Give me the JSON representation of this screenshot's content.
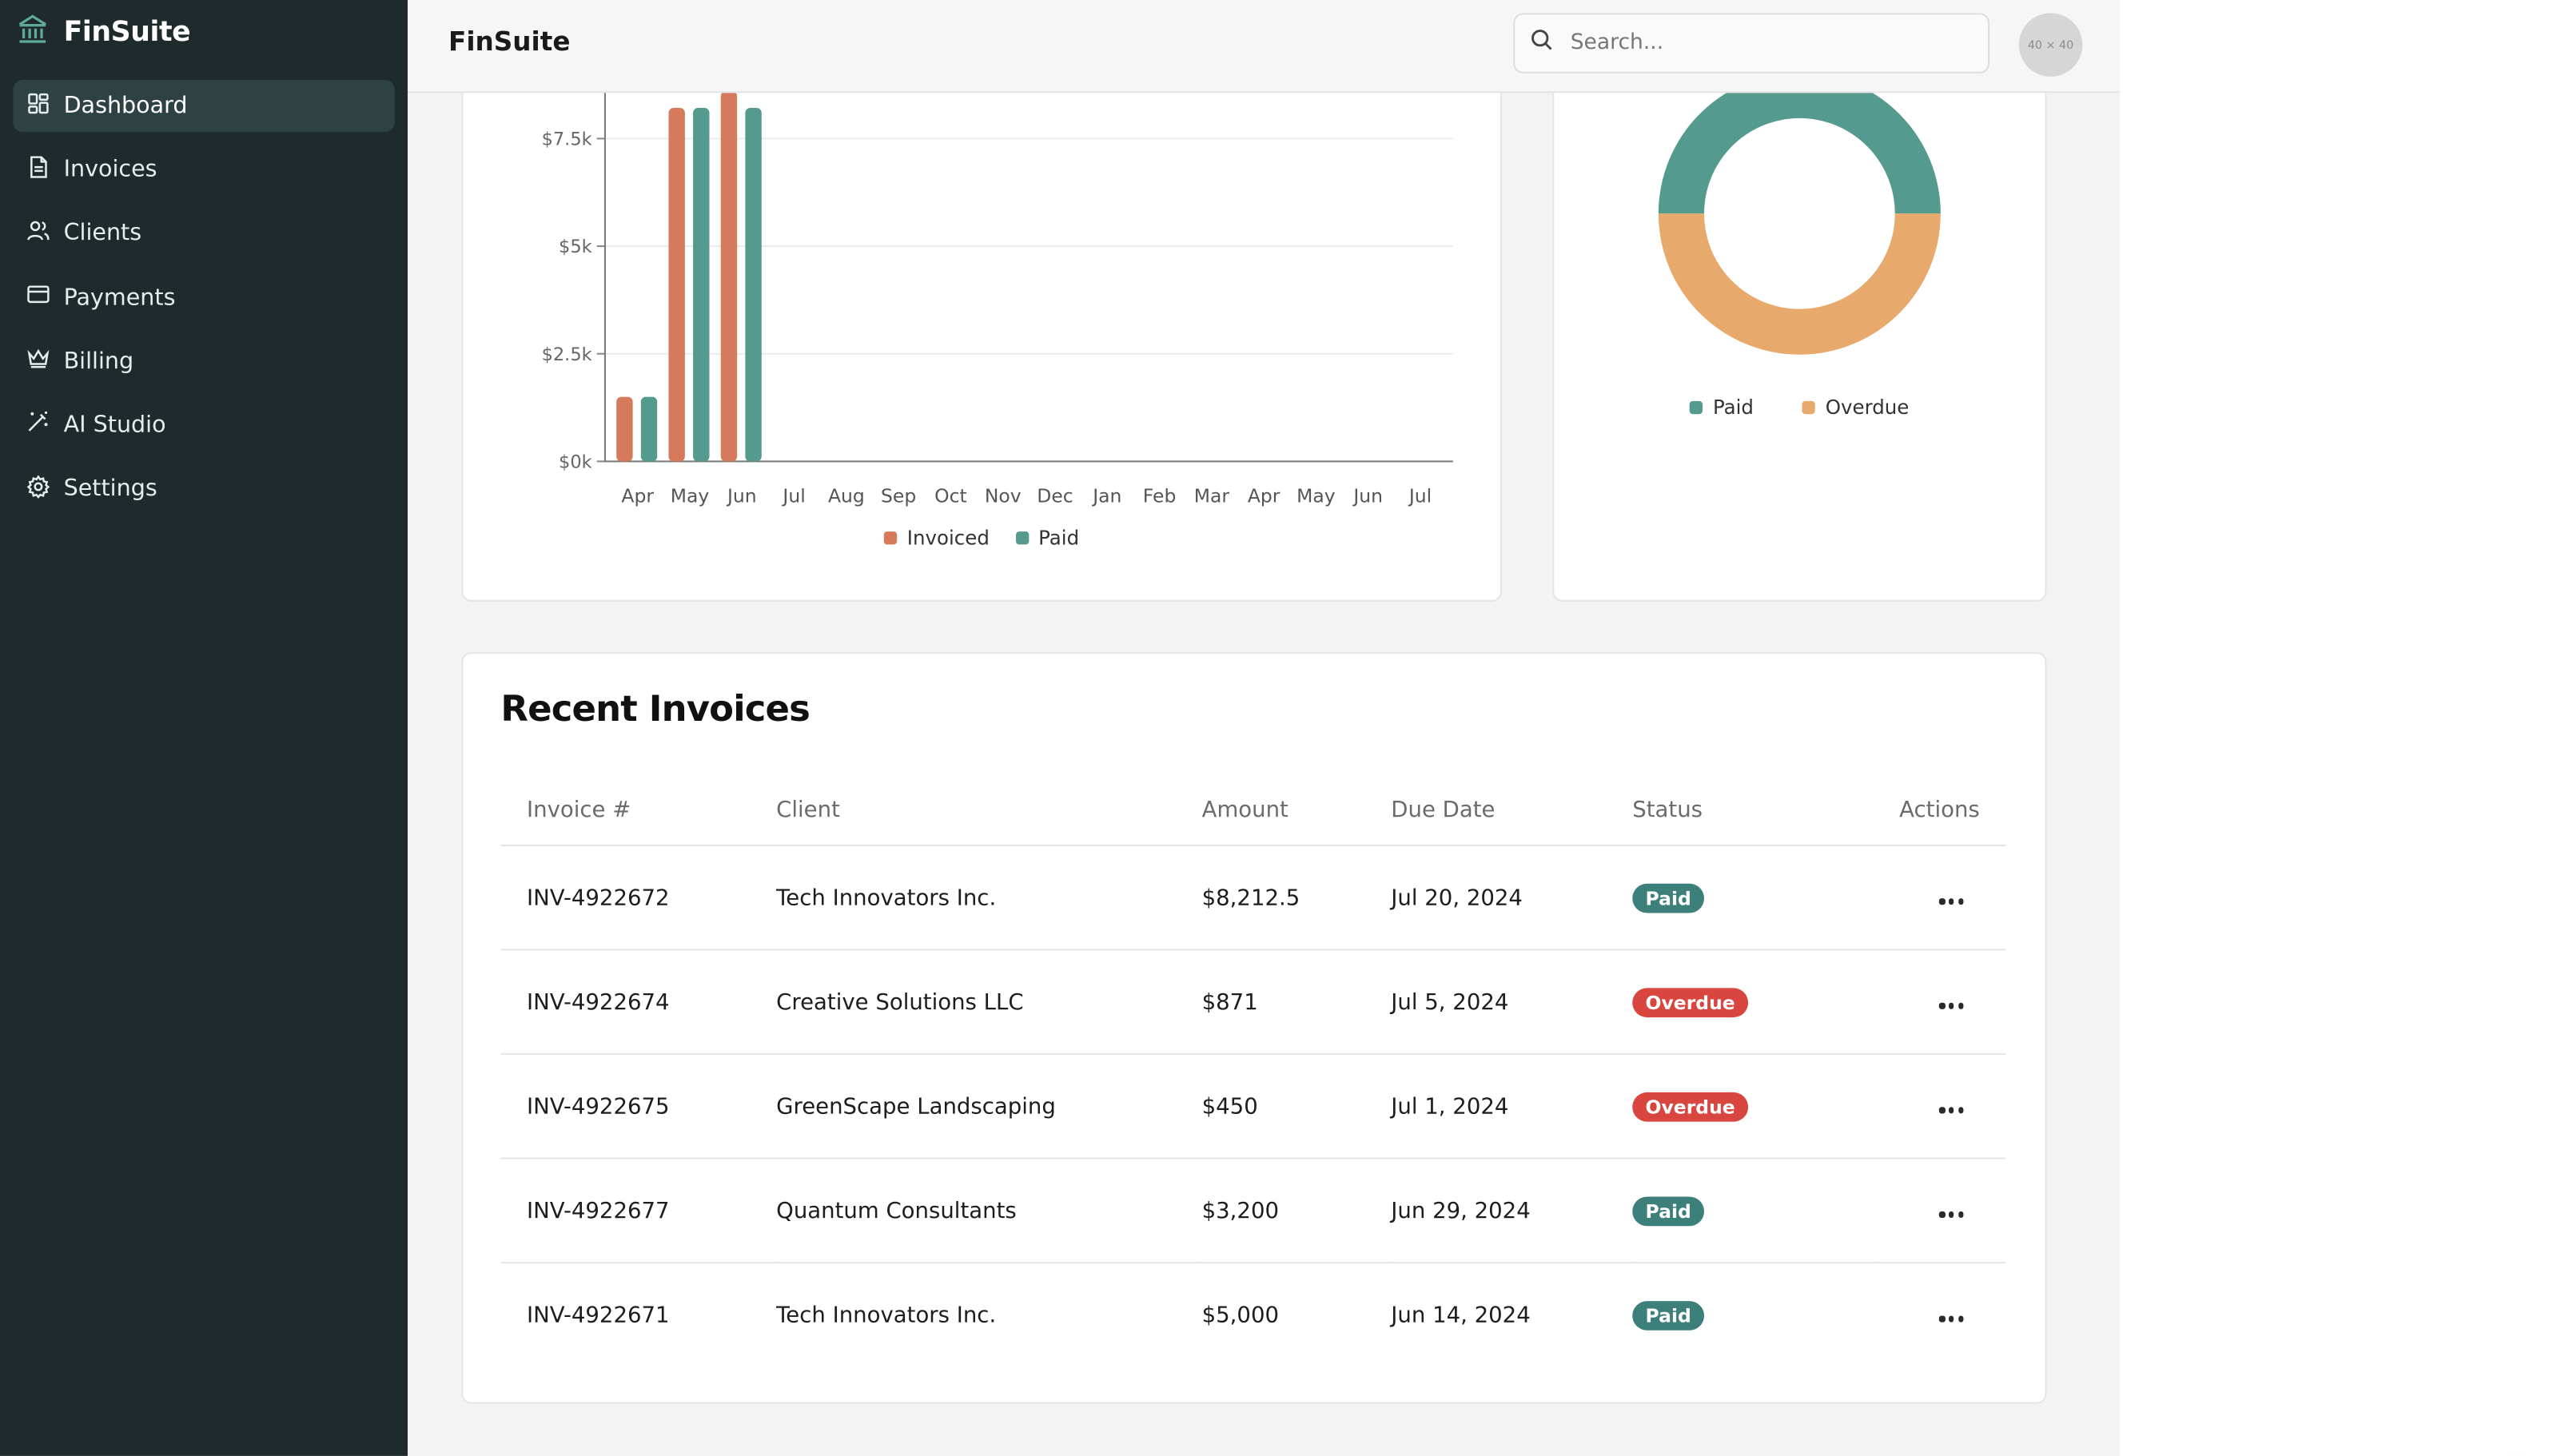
{
  "app": {
    "brand": "FinSuite",
    "page_title": "FinSuite"
  },
  "colors": {
    "sidebar_bg": "#1e2a2b",
    "invoiced": "#d57b5c",
    "paid": "#559a8e",
    "overdue": "#e7a96c",
    "badge_paid": "#3d7f7b",
    "badge_overdue": "#d9463f"
  },
  "sidebar": {
    "items": [
      {
        "label": "Dashboard",
        "icon": "dashboard-icon",
        "active": true
      },
      {
        "label": "Invoices",
        "icon": "invoice-icon"
      },
      {
        "label": "Clients",
        "icon": "users-icon"
      },
      {
        "label": "Payments",
        "icon": "credit-card-icon"
      },
      {
        "label": "Billing",
        "icon": "crown-icon"
      },
      {
        "label": "AI Studio",
        "icon": "magic-wand-icon"
      },
      {
        "label": "Settings",
        "icon": "gear-icon"
      }
    ]
  },
  "topbar": {
    "search_placeholder": "Search...",
    "avatar_text": "40 × 40"
  },
  "chart_data": [
    {
      "type": "bar",
      "categories": [
        "Apr",
        "May",
        "Jun",
        "Jul",
        "Aug",
        "Sep",
        "Oct",
        "Nov",
        "Dec",
        "Jan",
        "Feb",
        "Mar",
        "Apr",
        "May",
        "Jun",
        "Jul"
      ],
      "series": [
        {
          "name": "Invoiced",
          "values": [
            1500,
            8212.5,
            8600,
            0,
            0,
            0,
            0,
            0,
            0,
            0,
            0,
            0,
            0,
            0,
            0,
            0
          ]
        },
        {
          "name": "Paid",
          "values": [
            1500,
            8212.5,
            8212.5,
            0,
            0,
            0,
            0,
            0,
            0,
            0,
            0,
            0,
            0,
            0,
            0,
            0
          ]
        }
      ],
      "y_ticks": [
        "$0k",
        "$2.5k",
        "$5k",
        "$7.5k"
      ],
      "ylim": [
        0,
        10000
      ],
      "grid": true,
      "legend": "bottom"
    },
    {
      "type": "pie",
      "labels": [
        "Paid",
        "Overdue"
      ],
      "values": [
        50,
        50
      ],
      "legend": "bottom"
    }
  ],
  "invoices": {
    "title": "Recent Invoices",
    "columns": [
      "Invoice #",
      "Client",
      "Amount",
      "Due Date",
      "Status",
      "Actions"
    ],
    "rows": [
      {
        "id": "INV-4922672",
        "client": "Tech Innovators Inc.",
        "amount": "$8,212.5",
        "due": "Jul 20, 2024",
        "status": "Paid"
      },
      {
        "id": "INV-4922674",
        "client": "Creative Solutions LLC",
        "amount": "$871",
        "due": "Jul 5, 2024",
        "status": "Overdue"
      },
      {
        "id": "INV-4922675",
        "client": "GreenScape Landscaping",
        "amount": "$450",
        "due": "Jul 1, 2024",
        "status": "Overdue"
      },
      {
        "id": "INV-4922677",
        "client": "Quantum Consultants",
        "amount": "$3,200",
        "due": "Jun 29, 2024",
        "status": "Paid"
      },
      {
        "id": "INV-4922671",
        "client": "Tech Innovators Inc.",
        "amount": "$5,000",
        "due": "Jun 14, 2024",
        "status": "Paid"
      }
    ]
  }
}
